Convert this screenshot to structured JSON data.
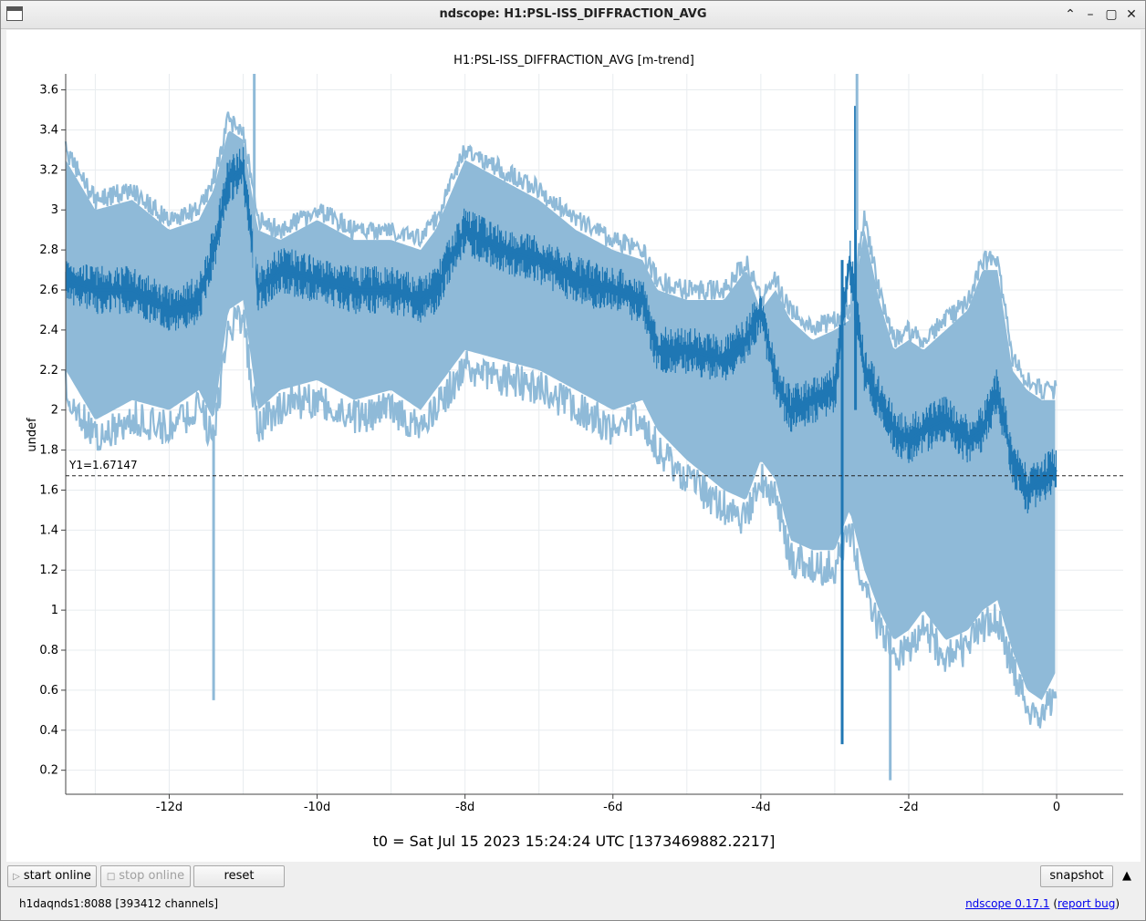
{
  "window": {
    "title": "ndscope: H1:PSL-ISS_DIFFRACTION_AVG",
    "icons": [
      "chevron-up-icon",
      "minimize-icon",
      "maximize-icon",
      "close-icon"
    ]
  },
  "plot": {
    "title": "H1:PSL-ISS_DIFFRACTION_AVG [m-trend]",
    "ylabel": "undef",
    "cursor_label": "Y1=1.67147",
    "t0_label": "t0 = Sat Jul 15 2023 15:24:24 UTC [1373469882.2217]"
  },
  "chart_data": {
    "type": "line",
    "title": "H1:PSL-ISS_DIFFRACTION_AVG [m-trend]",
    "xlabel": "",
    "ylabel": "undef",
    "xlim": [
      -13.4,
      0.9
    ],
    "ylim": [
      0.08,
      3.68
    ],
    "x_ticks": [
      -12,
      -10,
      -8,
      -6,
      -4,
      -2,
      0
    ],
    "x_tick_labels": [
      "-12d",
      "-10d",
      "-8d",
      "-6d",
      "-4d",
      "-2d",
      "0"
    ],
    "y_ticks": [
      0.2,
      0.4,
      0.6,
      0.8,
      1,
      1.2,
      1.4,
      1.6,
      1.8,
      2,
      2.2,
      2.4,
      2.6,
      2.8,
      3,
      3.2,
      3.4,
      3.6
    ],
    "y_tick_labels": [
      "0.2",
      "0.4",
      "0.6",
      "0.8",
      "1",
      "1.2",
      "1.4",
      "1.6",
      "1.8",
      "2",
      "2.2",
      "2.4",
      "2.6",
      "2.8",
      "3",
      "3.2",
      "3.4",
      "3.6"
    ],
    "grid": true,
    "cursor_y": 1.67147,
    "series": [
      {
        "role": "min-max envelope",
        "color": "#8fbad8",
        "x": [
          -13.4,
          -13.0,
          -12.5,
          -12.0,
          -11.6,
          -11.4,
          -11.2,
          -11.0,
          -10.8,
          -10.5,
          -10.0,
          -9.5,
          -9.0,
          -8.6,
          -8.4,
          -8.0,
          -7.5,
          -7.0,
          -6.5,
          -6.0,
          -5.6,
          -5.4,
          -5.0,
          -4.5,
          -4.2,
          -4.0,
          -3.8,
          -3.6,
          -3.3,
          -3.0,
          -2.8,
          -2.6,
          -2.4,
          -2.2,
          -2.0,
          -1.8,
          -1.5,
          -1.2,
          -1.0,
          -0.8,
          -0.6,
          -0.4,
          -0.2,
          0.0
        ],
        "min": [
          2.2,
          1.95,
          2.05,
          2.0,
          2.1,
          1.95,
          2.5,
          2.55,
          2.0,
          2.1,
          2.15,
          2.05,
          2.1,
          2.0,
          2.1,
          2.3,
          2.25,
          2.2,
          2.1,
          2.0,
          2.05,
          1.9,
          1.75,
          1.6,
          1.55,
          1.75,
          1.65,
          1.35,
          1.3,
          1.3,
          1.5,
          1.2,
          1.0,
          0.85,
          0.9,
          1.0,
          0.85,
          0.9,
          1.0,
          1.05,
          0.8,
          0.6,
          0.55,
          0.7
        ],
        "max": [
          3.25,
          3.0,
          3.05,
          2.9,
          2.95,
          3.1,
          3.4,
          3.35,
          2.9,
          2.85,
          2.95,
          2.85,
          2.85,
          2.8,
          2.9,
          3.25,
          3.15,
          3.05,
          2.9,
          2.8,
          2.75,
          2.6,
          2.55,
          2.55,
          2.7,
          2.5,
          2.6,
          2.45,
          2.35,
          2.4,
          2.45,
          2.9,
          2.55,
          2.3,
          2.35,
          2.3,
          2.4,
          2.5,
          2.7,
          2.7,
          2.2,
          2.1,
          2.05,
          2.05
        ]
      },
      {
        "role": "mean",
        "color": "#1f77b4",
        "x": [
          -13.4,
          -13.0,
          -12.5,
          -12.0,
          -11.6,
          -11.4,
          -11.2,
          -11.0,
          -10.8,
          -10.5,
          -10.0,
          -9.5,
          -9.0,
          -8.6,
          -8.4,
          -8.0,
          -7.5,
          -7.0,
          -6.5,
          -6.0,
          -5.6,
          -5.4,
          -5.0,
          -4.5,
          -4.2,
          -4.0,
          -3.8,
          -3.6,
          -3.3,
          -3.0,
          -2.8,
          -2.6,
          -2.4,
          -2.2,
          -2.0,
          -1.8,
          -1.5,
          -1.2,
          -1.0,
          -0.8,
          -0.6,
          -0.4,
          -0.2,
          0.0
        ],
        "mean": [
          2.65,
          2.6,
          2.6,
          2.5,
          2.55,
          2.8,
          3.15,
          3.2,
          2.6,
          2.7,
          2.65,
          2.6,
          2.6,
          2.55,
          2.6,
          2.9,
          2.8,
          2.75,
          2.65,
          2.6,
          2.55,
          2.3,
          2.3,
          2.25,
          2.35,
          2.5,
          2.15,
          2.0,
          2.05,
          2.1,
          2.75,
          2.2,
          2.05,
          1.9,
          1.85,
          1.9,
          1.95,
          1.85,
          1.9,
          2.1,
          1.75,
          1.6,
          1.65,
          1.7
        ]
      }
    ],
    "spikes": [
      {
        "x": -11.4,
        "low": 0.55,
        "high": 1.9,
        "color": "#8fbad8"
      },
      {
        "x": -10.85,
        "low": 2.5,
        "high": 3.68,
        "color": "#8fbad8"
      },
      {
        "x": -2.9,
        "low": 0.33,
        "high": 2.75,
        "color": "#1f77b4"
      },
      {
        "x": -2.72,
        "low": 2.0,
        "high": 3.52,
        "color": "#1f77b4"
      },
      {
        "x": -2.7,
        "low": 2.9,
        "high": 3.68,
        "color": "#8fbad8"
      },
      {
        "x": -2.25,
        "low": 0.15,
        "high": 1.6,
        "color": "#8fbad8"
      }
    ]
  },
  "toolbar": {
    "start_online": "start online",
    "stop_online": "stop online",
    "reset": "reset",
    "snapshot": "snapshot"
  },
  "status": {
    "server": "h1daqnds1:8088  [393412 channels]",
    "version_link": "ndscope 0.17.1",
    "report_bug_link": "report bug"
  }
}
